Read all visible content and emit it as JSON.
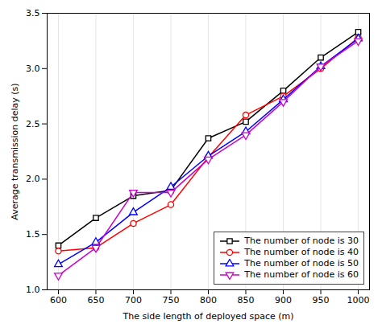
{
  "chart_data": {
    "type": "line",
    "x": [
      600,
      650,
      700,
      750,
      800,
      850,
      900,
      950,
      1000
    ],
    "series": [
      {
        "name": "The number of node is 30",
        "color": "#000000",
        "marker": "square",
        "values": [
          1.4,
          1.65,
          1.85,
          1.9,
          2.37,
          2.52,
          2.8,
          3.1,
          3.33
        ]
      },
      {
        "name": "The number of node is 40",
        "color": "#ff0000",
        "marker": "circle",
        "values": [
          1.35,
          1.38,
          1.6,
          1.77,
          2.2,
          2.58,
          2.75,
          3.0,
          3.28
        ]
      },
      {
        "name": "The number of node is 50",
        "color": "#0000ff",
        "marker": "triangle-up",
        "values": [
          1.23,
          1.43,
          1.7,
          1.93,
          2.21,
          2.43,
          2.72,
          3.02,
          3.27
        ]
      },
      {
        "name": "The number of node is 60",
        "color": "#cc00cc",
        "marker": "triangle-down",
        "values": [
          1.13,
          1.38,
          1.88,
          1.88,
          2.18,
          2.4,
          2.7,
          3.02,
          3.25
        ]
      }
    ],
    "xlabel": "The side length of deployed space (m)",
    "ylabel": "Average transmission delay (s)",
    "xlim": [
      585,
      1015
    ],
    "ylim": [
      1.0,
      3.5
    ],
    "xticks": [
      600,
      650,
      700,
      750,
      800,
      850,
      900,
      950,
      1000
    ],
    "yticks": [
      {
        "value": 1.0,
        "label": "1.0"
      },
      1.5,
      {
        "value": 2.0,
        "label": "2.0"
      },
      2.5,
      {
        "value": 3.0,
        "label": "3.0"
      },
      3.5
    ],
    "grid": "x",
    "legend": "lower right"
  }
}
